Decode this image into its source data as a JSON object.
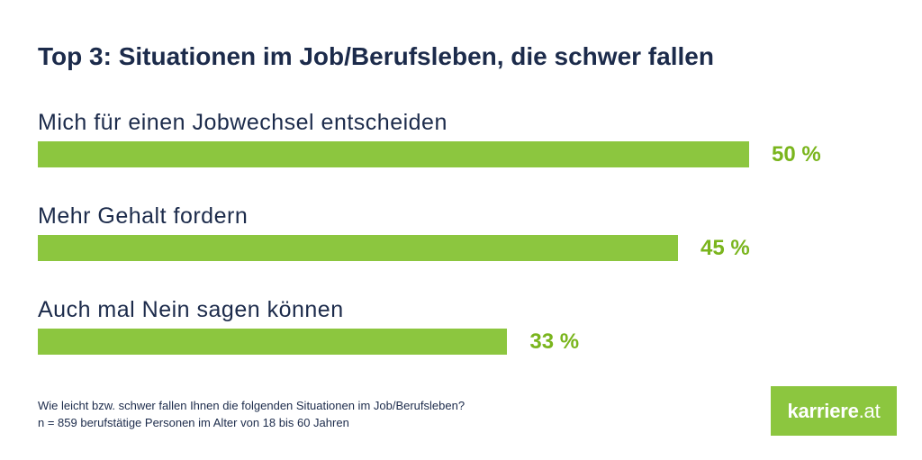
{
  "chart_data": {
    "type": "bar",
    "title": "Top 3: Situationen im Job/Berufsleben, die schwer fallen",
    "categories": [
      "Mich für einen Jobwechsel entscheiden",
      "Mehr Gehalt fordern",
      "Auch mal Nein sagen können"
    ],
    "values": [
      50,
      45,
      33
    ],
    "value_labels": [
      "50 %",
      "45 %",
      "33 %"
    ],
    "xlabel": "",
    "ylabel": "",
    "xlim": [
      0,
      50
    ],
    "grid": false
  },
  "footnote": {
    "question": "Wie leicht bzw. schwer fallen Ihnen die folgenden Situationen im Job/Berufsleben?",
    "sample": "n = 859 berufstätige Personen im Alter von 18 bis 60 Jahren"
  },
  "logo": {
    "name": "karriere",
    "suffix": ".at"
  },
  "colors": {
    "bar": "#8cc63f",
    "value_label": "#7ab51d",
    "text": "#1c2b4b",
    "logo_background": "#8cc63f",
    "logo_text": "#ffffff",
    "background": "#ffffff"
  }
}
